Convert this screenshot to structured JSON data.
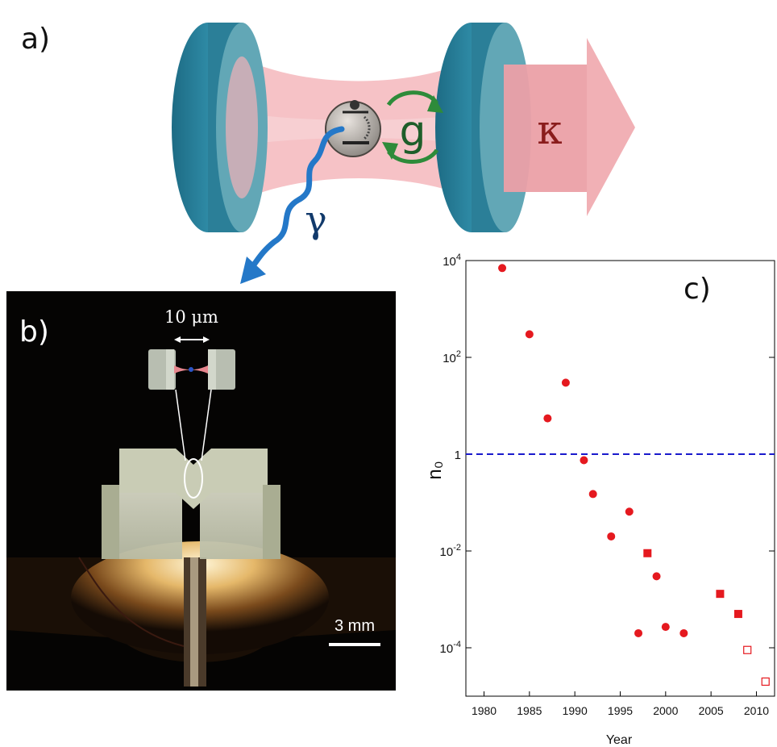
{
  "panels": {
    "a": {
      "label": "a)",
      "symbols": {
        "coupling": "g",
        "cavity_loss": "κ",
        "decay": "γ"
      }
    },
    "b": {
      "label": "b)",
      "size_label": "10 μm",
      "scale_bar_label": "3 mm"
    },
    "c": {
      "label": "c)"
    }
  },
  "colors": {
    "mirror": "#2a7d96",
    "beam": "#f0a7ad",
    "marker": "#e5191f",
    "threshold": "#1a1acc",
    "arrow_green": "#2e8b3a",
    "gamma_blue": "#2478c8"
  },
  "chart_data": {
    "type": "scatter",
    "xlabel": "Year",
    "ylabel": "n₀",
    "xlim": [
      1978,
      2012
    ],
    "ylim": [
      1e-05,
      10000
    ],
    "yscale": "log",
    "xticks": [
      1980,
      1985,
      1990,
      1995,
      2000,
      2005,
      2010
    ],
    "yticks": [
      {
        "value": 0.0001,
        "base": "10",
        "exp": "-4"
      },
      {
        "value": 0.01,
        "base": "10",
        "exp": "-2"
      },
      {
        "value": 1,
        "base": "1",
        "exp": ""
      },
      {
        "value": 100,
        "base": "10",
        "exp": "2"
      },
      {
        "value": 10000,
        "base": "10",
        "exp": "4"
      }
    ],
    "threshold_line": 1,
    "series": [
      {
        "marker": "circle-filled",
        "points": [
          {
            "x": 1982,
            "y": 7000
          },
          {
            "x": 1985,
            "y": 300
          },
          {
            "x": 1987,
            "y": 5.5
          },
          {
            "x": 1989,
            "y": 30
          },
          {
            "x": 1991,
            "y": 0.75
          },
          {
            "x": 1992,
            "y": 0.15
          },
          {
            "x": 1994,
            "y": 0.02
          },
          {
            "x": 1996,
            "y": 0.065
          },
          {
            "x": 1997,
            "y": 0.0002
          },
          {
            "x": 1999,
            "y": 0.003
          },
          {
            "x": 2000,
            "y": 0.00027
          },
          {
            "x": 2002,
            "y": 0.0002
          }
        ]
      },
      {
        "marker": "square-filled",
        "points": [
          {
            "x": 1998,
            "y": 0.009
          },
          {
            "x": 2006,
            "y": 0.0013
          },
          {
            "x": 2008,
            "y": 0.0005
          }
        ]
      },
      {
        "marker": "square-open",
        "points": [
          {
            "x": 2009,
            "y": 9e-05
          },
          {
            "x": 2011,
            "y": 2e-05
          }
        ]
      }
    ]
  }
}
